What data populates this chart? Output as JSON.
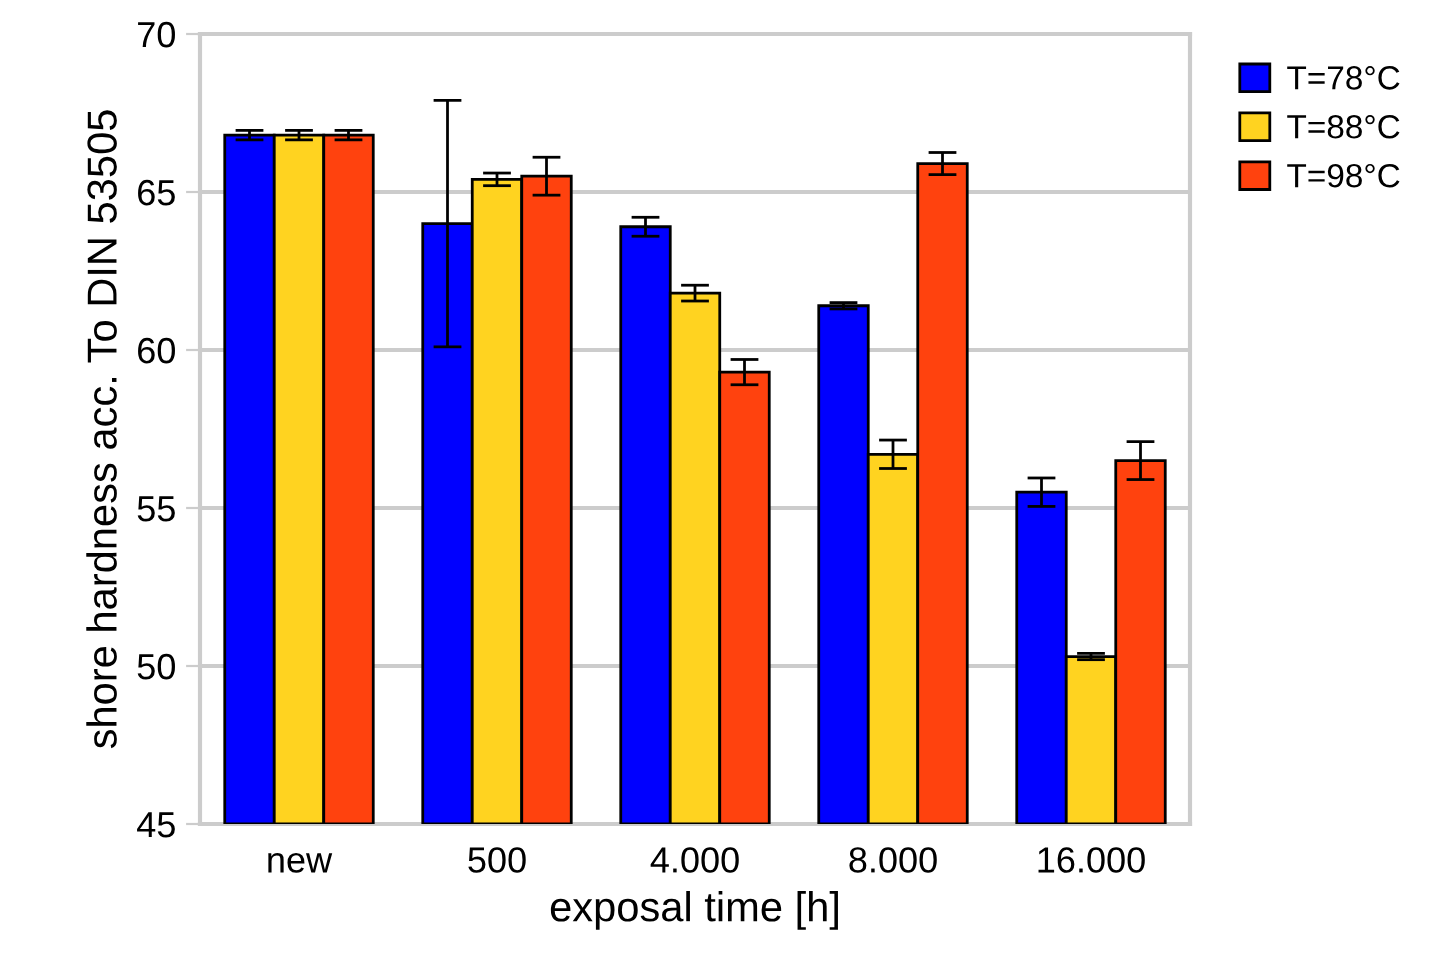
{
  "chart_data": {
    "type": "bar",
    "xlabel": "exposal time [h]",
    "ylabel": "shore hardness acc. To DIN 53505",
    "categories": [
      "new",
      "500",
      "4.000",
      "8.000",
      "16.000"
    ],
    "series": [
      {
        "name": "T=78°C",
        "color": "#0000ff",
        "values": [
          66.8,
          64.0,
          63.9,
          61.4,
          55.5
        ],
        "errors": [
          0.15,
          3.9,
          0.3,
          0.1,
          0.45
        ]
      },
      {
        "name": "T=88°C",
        "color": "#ffd320",
        "values": [
          66.8,
          65.4,
          61.8,
          56.7,
          50.3
        ],
        "errors": [
          0.15,
          0.2,
          0.25,
          0.45,
          0.1
        ]
      },
      {
        "name": "T=98°C",
        "color": "#ff420e",
        "values": [
          66.8,
          65.5,
          59.3,
          65.9,
          56.5
        ],
        "errors": [
          0.15,
          0.6,
          0.4,
          0.35,
          0.6
        ]
      }
    ],
    "ylim": [
      45,
      70
    ],
    "yticks": [
      45,
      50,
      55,
      60,
      65,
      70
    ],
    "grid": "y",
    "legend": "top right"
  }
}
